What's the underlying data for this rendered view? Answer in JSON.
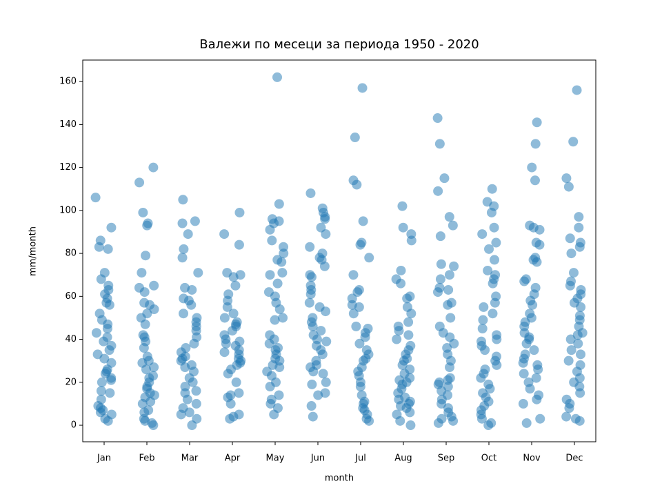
{
  "chart_data": {
    "type": "strip",
    "title": "Валежи по месеци за периода 1950 - 2020",
    "x_label": "month",
    "y_label": "mm/month",
    "color": "#1f77b4",
    "categories": [
      "Jan",
      "Feb",
      "Mar",
      "Apr",
      "May",
      "Jun",
      "Jul",
      "Aug",
      "Sep",
      "Oct",
      "Nov",
      "Dec"
    ],
    "values": [
      [
        106,
        92,
        86,
        83,
        82,
        71,
        68,
        65,
        63,
        61,
        59,
        57,
        56,
        52,
        49,
        47,
        45,
        43,
        41,
        39,
        37,
        35,
        33,
        31,
        29,
        26,
        25,
        24,
        22,
        21,
        20,
        16,
        15,
        12,
        9,
        8,
        7,
        6,
        5,
        3,
        2
      ],
      [
        120,
        113,
        99,
        94,
        93,
        79,
        71,
        65,
        64,
        62,
        57,
        56,
        54,
        52,
        50,
        47,
        42,
        41,
        39,
        36,
        32,
        30,
        29,
        27,
        26,
        23,
        22,
        20,
        18,
        17,
        15,
        14,
        13,
        11,
        10,
        7,
        6,
        3,
        2,
        1,
        0
      ],
      [
        105,
        95,
        94,
        89,
        82,
        78,
        71,
        64,
        63,
        59,
        58,
        56,
        52,
        50,
        48,
        46,
        44,
        41,
        38,
        36,
        34,
        32,
        31,
        30,
        28,
        27,
        25,
        22,
        20,
        18,
        16,
        15,
        12,
        10,
        8,
        6,
        5,
        3,
        0
      ],
      [
        99,
        89,
        84,
        71,
        70,
        69,
        65,
        61,
        58,
        55,
        52,
        50,
        48,
        47,
        46,
        44,
        42,
        40,
        39,
        38,
        37,
        35,
        34,
        33,
        31,
        30,
        29,
        28,
        26,
        24,
        20,
        15,
        14,
        13,
        10,
        5,
        4,
        3
      ],
      [
        162,
        103,
        96,
        95,
        94,
        91,
        86,
        83,
        80,
        77,
        76,
        71,
        70,
        66,
        62,
        60,
        57,
        54,
        50,
        49,
        42,
        40,
        38,
        36,
        35,
        33,
        31,
        30,
        28,
        27,
        25,
        23,
        20,
        18,
        14,
        12,
        10,
        8,
        5
      ],
      [
        108,
        101,
        99,
        97,
        96,
        92,
        89,
        83,
        80,
        78,
        77,
        74,
        70,
        69,
        65,
        63,
        61,
        57,
        55,
        53,
        50,
        48,
        46,
        44,
        42,
        40,
        39,
        37,
        35,
        33,
        30,
        28,
        27,
        25,
        24,
        20,
        19,
        15,
        14,
        9,
        4
      ],
      [
        157,
        134,
        114,
        112,
        95,
        85,
        84,
        78,
        70,
        63,
        62,
        59,
        56,
        55,
        52,
        46,
        45,
        43,
        41,
        38,
        35,
        33,
        31,
        30,
        27,
        25,
        23,
        20,
        18,
        14,
        11,
        10,
        8,
        7,
        5,
        3,
        2
      ],
      [
        102,
        92,
        89,
        86,
        72,
        68,
        66,
        60,
        59,
        55,
        52,
        48,
        46,
        44,
        42,
        40,
        37,
        35,
        33,
        31,
        30,
        28,
        26,
        24,
        22,
        21,
        20,
        19,
        17,
        15,
        13,
        12,
        11,
        10,
        9,
        8,
        6,
        5,
        2,
        0
      ],
      [
        143,
        131,
        115,
        109,
        97,
        93,
        88,
        75,
        74,
        70,
        68,
        64,
        63,
        62,
        57,
        56,
        50,
        46,
        43,
        41,
        38,
        36,
        33,
        30,
        27,
        22,
        21,
        20,
        19,
        18,
        16,
        14,
        12,
        10,
        8,
        6,
        4,
        3,
        2,
        1
      ],
      [
        110,
        104,
        102,
        99,
        92,
        89,
        85,
        82,
        77,
        72,
        70,
        68,
        66,
        60,
        57,
        55,
        52,
        49,
        45,
        42,
        40,
        39,
        37,
        35,
        32,
        30,
        28,
        26,
        24,
        22,
        19,
        17,
        15,
        13,
        11,
        9,
        7,
        5,
        3,
        1,
        0
      ],
      [
        141,
        131,
        120,
        114,
        93,
        92,
        91,
        85,
        84,
        78,
        77,
        76,
        68,
        67,
        64,
        61,
        58,
        56,
        52,
        50,
        48,
        46,
        43,
        41,
        40,
        38,
        35,
        33,
        31,
        29,
        28,
        26,
        24,
        22,
        20,
        17,
        14,
        12,
        10,
        3,
        1
      ],
      [
        156,
        132,
        115,
        111,
        97,
        92,
        87,
        85,
        83,
        80,
        71,
        67,
        65,
        63,
        61,
        59,
        57,
        55,
        51,
        49,
        46,
        43,
        42,
        40,
        38,
        35,
        33,
        30,
        28,
        25,
        22,
        20,
        18,
        15,
        12,
        10,
        8,
        4,
        3,
        2
      ]
    ],
    "ylim": [
      -7.7,
      170
    ],
    "yticks": [
      0,
      20,
      40,
      60,
      80,
      100,
      120,
      140,
      160
    ]
  }
}
